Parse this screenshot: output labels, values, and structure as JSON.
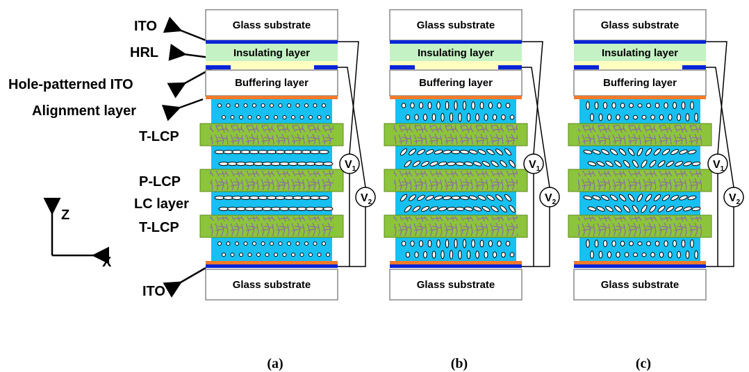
{
  "labels": {
    "ito_top": "ITO",
    "hrl": "HRL",
    "hole_ito": "Hole-patterned ITO",
    "alignment": "Alignment layer",
    "t_lcp_top": "T-LCP",
    "p_lcp": "P-LCP",
    "lc_layer": "LC layer",
    "t_lcp_bottom": "T-LCP",
    "ito_bottom": "ITO"
  },
  "axes": {
    "z": "Z",
    "x": "X"
  },
  "panels": [
    {
      "top_glass": "Glass substrate",
      "insulating": "Insulating layer",
      "buffering": "Buffering layer",
      "bottom_glass": "Glass substrate",
      "v1": {
        "symbol": "V",
        "subscript": "1"
      },
      "v2": {
        "symbol": "V",
        "subscript": "2"
      },
      "caption": "(a)"
    },
    {
      "top_glass": "Glass substrate",
      "insulating": "Insulating layer",
      "buffering": "Buffering layer",
      "bottom_glass": "Glass substrate",
      "v1": {
        "symbol": "V",
        "subscript": "1"
      },
      "v2": {
        "symbol": "V",
        "subscript": "2"
      },
      "caption": "(b)"
    },
    {
      "top_glass": "Glass substrate",
      "insulating": "Insulating layer",
      "buffering": "Buffering layer",
      "bottom_glass": "Glass substrate",
      "v1": {
        "symbol": "V",
        "subscript": "1"
      },
      "v2": {
        "symbol": "V",
        "subscript": "2"
      },
      "caption": "(c)"
    }
  ]
}
